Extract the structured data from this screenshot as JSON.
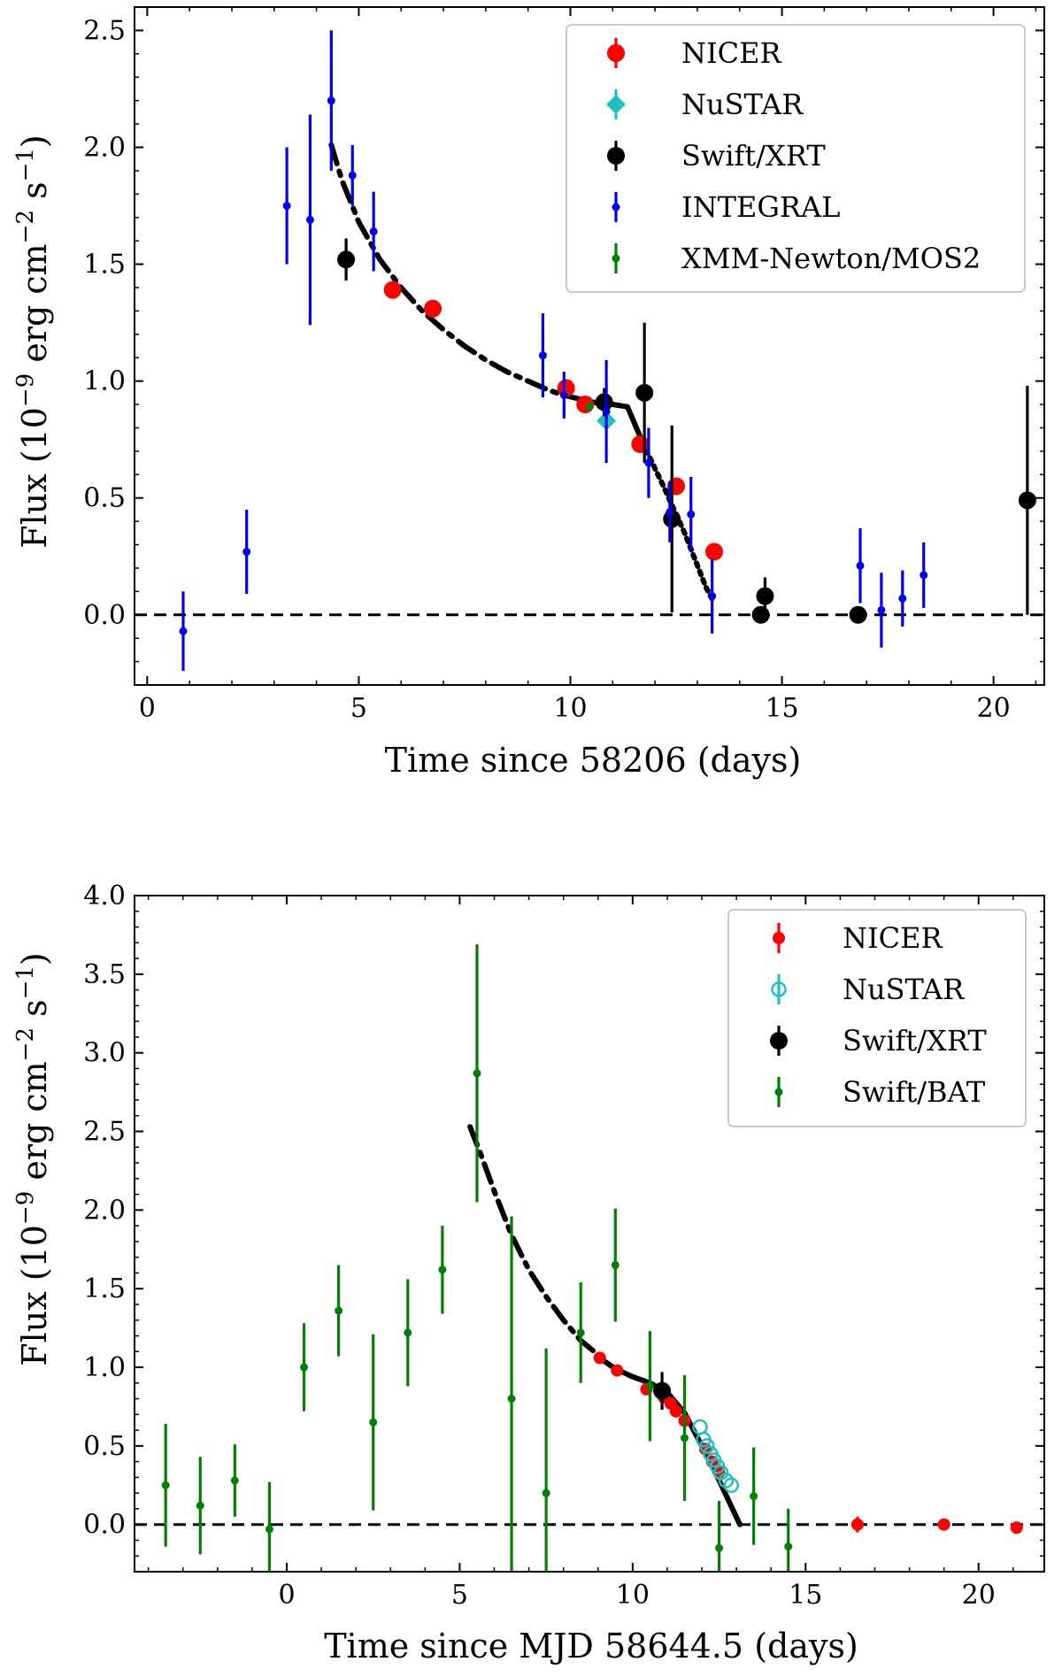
{
  "chart_data": [
    {
      "type": "scatter",
      "id": "top",
      "xlabel": "Time since 58206 (days)",
      "ylabel_main": "Flux (10",
      "ylabel_exp1": "−9",
      "ylabel_mid": " erg cm",
      "ylabel_exp2": "−2",
      "ylabel_s": " s",
      "ylabel_exp3": "−1",
      "ylabel_close": ")",
      "xlim": [
        -0.3,
        21.2
      ],
      "ylim": [
        -0.3,
        2.6
      ],
      "xticks": [
        0,
        5,
        10,
        15,
        20
      ],
      "xtick_labels": [
        "0",
        "5",
        "10",
        "15",
        "20"
      ],
      "yticks": [
        0.0,
        0.5,
        1.0,
        1.5,
        2.0,
        2.5
      ],
      "ytick_labels": [
        "0.0",
        "0.5",
        "1.0",
        "1.5",
        "2.0",
        "2.5"
      ],
      "legend_position": "top-right",
      "series": [
        {
          "name": "NICER",
          "color": "#ff0000",
          "marker": "circle-large",
          "x": [
            5.8,
            6.75,
            9.9,
            10.35,
            11.65,
            12.5,
            13.4
          ],
          "y": [
            1.39,
            1.31,
            0.97,
            0.9,
            0.73,
            0.55,
            0.27
          ],
          "err": [
            0.01,
            0.01,
            0.01,
            0.01,
            0.01,
            0.01,
            0.01
          ]
        },
        {
          "name": "NuSTAR",
          "color": "#20c0c0",
          "marker": "diamond",
          "x": [
            10.85
          ],
          "y": [
            0.83
          ],
          "err": [
            0.01
          ]
        },
        {
          "name": "Swift/XRT",
          "color": "#000000",
          "marker": "circle-large",
          "x": [
            4.7,
            10.8,
            11.75,
            12.4,
            14.5,
            14.6,
            16.8,
            20.8
          ],
          "y": [
            1.52,
            0.91,
            0.95,
            0.41,
            0.0,
            0.08,
            0.0,
            0.49
          ],
          "err": [
            0.09,
            0.06,
            0.3,
            0.4,
            0.0,
            0.08,
            0.0,
            0.49
          ]
        },
        {
          "name": "INTEGRAL",
          "color": "#0000ee",
          "marker": "circle-small",
          "x": [
            0.85,
            2.35,
            3.3,
            3.85,
            4.35,
            4.85,
            5.35,
            9.35,
            9.85,
            10.85,
            11.85,
            12.35,
            12.85,
            13.35,
            16.85,
            17.35,
            17.85,
            18.35
          ],
          "y": [
            -0.07,
            0.27,
            1.75,
            1.69,
            2.2,
            1.88,
            1.64,
            1.11,
            0.94,
            0.87,
            0.65,
            0.44,
            0.43,
            0.08,
            0.21,
            0.02,
            0.07,
            0.17
          ],
          "err": [
            0.17,
            0.18,
            0.25,
            0.45,
            0.3,
            0.13,
            0.17,
            0.18,
            0.1,
            0.22,
            0.15,
            0.13,
            0.16,
            0.16,
            0.16,
            0.16,
            0.12,
            0.14
          ]
        },
        {
          "name": "XMM-Newton/MOS2",
          "color": "#008000",
          "marker": "circle-small",
          "x": [
            10.45
          ],
          "y": [
            0.89
          ],
          "err": [
            0.01
          ]
        }
      ],
      "fit": {
        "dashdot": {
          "x": [
            4.35,
            4.6,
            5.0,
            5.5,
            6.0,
            6.5,
            7.0,
            7.5,
            8.0,
            8.5,
            9.0,
            9.5,
            9.85
          ],
          "y": [
            2.01,
            1.86,
            1.68,
            1.52,
            1.4,
            1.3,
            1.22,
            1.15,
            1.09,
            1.04,
            1.0,
            0.96,
            0.94
          ]
        },
        "solid": {
          "x": [
            9.85,
            10.5,
            11.0,
            11.35
          ],
          "y": [
            0.94,
            0.91,
            0.9,
            0.89
          ]
        },
        "solid_drop": {
          "x": [
            11.35,
            11.7
          ],
          "y": [
            0.89,
            0.74
          ]
        },
        "dotted": {
          "x": [
            11.7,
            12.2,
            12.7,
            13.2,
            13.4
          ],
          "y": [
            0.74,
            0.55,
            0.35,
            0.12,
            0.05
          ]
        }
      }
    },
    {
      "type": "scatter",
      "id": "bottom",
      "xlabel": "Time since MJD 58644.5 (days)",
      "ylabel_main": "Flux (10",
      "ylabel_exp1": "−9",
      "ylabel_mid": " erg cm",
      "ylabel_exp2": "−2",
      "ylabel_s": " s",
      "ylabel_exp3": "−1",
      "ylabel_close": ")",
      "xlim": [
        -4.4,
        21.9
      ],
      "ylim": [
        -0.3,
        4.0
      ],
      "xticks": [
        0,
        5,
        10,
        15,
        20
      ],
      "xtick_labels": [
        "0",
        "5",
        "10",
        "15",
        "20"
      ],
      "yticks": [
        0.0,
        0.5,
        1.0,
        1.5,
        2.0,
        2.5,
        3.0,
        3.5,
        4.0
      ],
      "ytick_labels": [
        "0.0",
        "0.5",
        "1.0",
        "1.5",
        "2.0",
        "2.5",
        "3.0",
        "3.5",
        "4.0"
      ],
      "legend_position": "top-right",
      "series": [
        {
          "name": "NICER",
          "color": "#ff0000",
          "marker": "circle-medium",
          "x": [
            9.05,
            9.55,
            10.4,
            10.9,
            11.1,
            11.25,
            11.5,
            12.1,
            12.3,
            12.5,
            16.5,
            19.0,
            21.1
          ],
          "y": [
            1.06,
            0.98,
            0.86,
            0.81,
            0.77,
            0.72,
            0.66,
            0.48,
            0.4,
            0.33,
            0.0,
            0.0,
            -0.02
          ],
          "err": [
            0.02,
            0.02,
            0.02,
            0.02,
            0.02,
            0.02,
            0.02,
            0.02,
            0.02,
            0.02,
            0.05,
            0.02,
            0.02
          ]
        },
        {
          "name": "NuSTAR",
          "color": "#20c0c0",
          "marker": "circle-open",
          "x": [
            11.95,
            12.05,
            12.15,
            12.25,
            12.35,
            12.45,
            12.55,
            12.7,
            12.85
          ],
          "y": [
            0.62,
            0.54,
            0.5,
            0.45,
            0.41,
            0.37,
            0.33,
            0.28,
            0.25
          ],
          "err": [
            0.01,
            0.01,
            0.01,
            0.01,
            0.01,
            0.01,
            0.01,
            0.01,
            0.01
          ]
        },
        {
          "name": "Swift/XRT",
          "color": "#000000",
          "marker": "circle-large",
          "x": [
            10.85
          ],
          "y": [
            0.85
          ],
          "err": [
            0.12
          ]
        },
        {
          "name": "Swift/BAT",
          "color": "#008000",
          "marker": "circle-small",
          "x": [
            -3.5,
            -2.5,
            -1.5,
            -0.5,
            0.5,
            1.5,
            2.5,
            3.5,
            4.5,
            5.5,
            6.5,
            7.5,
            8.5,
            9.5,
            10.5,
            11.5,
            12.5,
            13.5,
            14.5
          ],
          "y": [
            0.25,
            0.12,
            0.28,
            -0.03,
            1.0,
            1.36,
            0.65,
            1.22,
            1.62,
            2.87,
            0.8,
            0.2,
            1.22,
            1.65,
            0.88,
            0.55,
            -0.15,
            0.18,
            -0.14
          ],
          "err": [
            0.39,
            0.31,
            0.23,
            0.3,
            0.28,
            0.29,
            0.56,
            0.34,
            0.28,
            0.82,
            1.16,
            0.92,
            0.32,
            0.36,
            0.35,
            0.4,
            0.3,
            0.31,
            0.24
          ]
        }
      ],
      "fit": {
        "dashdot": {
          "x": [
            5.3,
            5.6,
            6.0,
            6.5,
            7.0,
            7.5,
            8.0,
            8.5,
            9.0,
            9.05
          ],
          "y": [
            2.53,
            2.36,
            2.12,
            1.84,
            1.62,
            1.45,
            1.3,
            1.17,
            1.08,
            1.06
          ]
        },
        "solid": {
          "x": [
            9.05,
            9.5,
            10.0,
            10.5,
            11.0,
            11.5,
            12.0,
            12.5,
            12.8,
            13.1
          ],
          "y": [
            1.06,
            0.99,
            0.94,
            0.9,
            0.84,
            0.71,
            0.5,
            0.28,
            0.14,
            0.0
          ]
        }
      }
    }
  ]
}
